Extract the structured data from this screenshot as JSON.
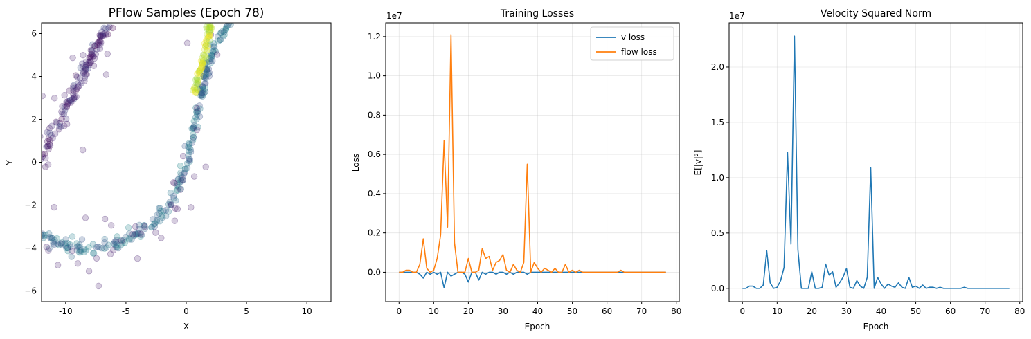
{
  "chart_data": [
    {
      "type": "scatter",
      "title": "PFlow Samples (Epoch 78)",
      "xlabel": "X",
      "ylabel": "Y",
      "xlim": [
        -12,
        12
      ],
      "ylim": [
        -6.5,
        6.5
      ],
      "xticks": [
        -10,
        -5,
        0,
        5,
        10
      ],
      "yticks": [
        -6,
        -4,
        -2,
        0,
        2,
        4,
        6
      ],
      "grid": false,
      "colormap": "viridis",
      "point_alpha": 0.25,
      "clusters": [
        {
          "name": "upper-left arm",
          "path": [
            [
              -12,
              0.2
            ],
            [
              -11,
              1.3
            ],
            [
              -10,
              2.5
            ],
            [
              -9,
              3.6
            ],
            [
              -8,
              4.8
            ],
            [
              -7,
              5.9
            ],
            [
              -6.2,
              6.5
            ]
          ],
          "count": 120,
          "spread": 0.18,
          "color_value": 0.12,
          "outliers": 30
        },
        {
          "name": "lower curve",
          "path": [
            [
              -12,
              -3.4
            ],
            [
              -10,
              -3.9
            ],
            [
              -8,
              -4.0
            ],
            [
              -6,
              -3.8
            ],
            [
              -4,
              -3.3
            ],
            [
              -2,
              -2.5
            ],
            [
              -1,
              -1.6
            ],
            [
              0,
              -0.2
            ],
            [
              0.5,
              1.2
            ],
            [
              1,
              2.8
            ],
            [
              1.5,
              4.0
            ],
            [
              2.2,
              5.2
            ],
            [
              3,
              6.0
            ],
            [
              3.6,
              6.5
            ]
          ],
          "count": 260,
          "spread": 0.15,
          "color_value": 0.35,
          "outliers": 40
        },
        {
          "name": "bright ridge",
          "path": [
            [
              0.6,
              3.0
            ],
            [
              0.9,
              3.6
            ],
            [
              1.2,
              4.3
            ],
            [
              1.5,
              5.0
            ],
            [
              1.8,
              5.8
            ],
            [
              2.0,
              6.5
            ]
          ],
          "count": 80,
          "spread": 0.1,
          "color_value": 0.95,
          "outliers": 0
        }
      ]
    },
    {
      "type": "line",
      "title": "Training Losses",
      "xlabel": "Epoch",
      "ylabel": "Loss",
      "offset_text": "1e7",
      "xlim": [
        -3.85,
        80.85
      ],
      "ylim": [
        -0.15,
        1.27
      ],
      "xticks": [
        0,
        10,
        20,
        30,
        40,
        50,
        60,
        70,
        80
      ],
      "yticks": [
        0.0,
        0.2,
        0.4,
        0.6,
        0.8,
        1.0,
        1.2
      ],
      "ytick_labels": [
        "0.0",
        "0.2",
        "0.4",
        "0.6",
        "0.8",
        "1.0",
        "1.2"
      ],
      "grid": true,
      "legend_position": "upper right",
      "x": [
        0,
        1,
        2,
        3,
        4,
        5,
        6,
        7,
        8,
        9,
        10,
        11,
        12,
        13,
        14,
        15,
        16,
        17,
        18,
        19,
        20,
        21,
        22,
        23,
        24,
        25,
        26,
        27,
        28,
        29,
        30,
        31,
        32,
        33,
        34,
        35,
        36,
        37,
        38,
        39,
        40,
        41,
        42,
        43,
        44,
        45,
        46,
        47,
        48,
        49,
        50,
        51,
        52,
        53,
        54,
        55,
        56,
        57,
        58,
        59,
        60,
        61,
        62,
        63,
        64,
        65,
        66,
        67,
        68,
        69,
        70,
        71,
        72,
        73,
        74,
        75,
        76,
        77
      ],
      "series": [
        {
          "name": "v loss",
          "color": "#1f77b4",
          "values": [
            0,
            0,
            0,
            0,
            0,
            0,
            -0.01,
            -0.03,
            0,
            -0.01,
            0,
            -0.01,
            0,
            -0.08,
            0,
            -0.02,
            -0.01,
            0,
            0,
            -0.01,
            -0.05,
            0,
            0,
            -0.04,
            0,
            -0.01,
            0,
            0,
            -0.01,
            0,
            0,
            -0.01,
            0,
            -0.01,
            0,
            0,
            0,
            -0.01,
            0,
            0,
            0,
            0,
            0,
            0,
            0,
            0,
            0,
            0,
            0,
            0,
            0,
            0,
            0,
            0,
            0,
            0,
            0,
            0,
            0,
            0,
            0,
            0,
            0,
            0,
            0,
            0,
            0,
            0,
            0,
            0,
            0,
            0,
            0,
            0,
            0,
            0,
            0,
            0
          ]
        },
        {
          "name": "flow loss",
          "color": "#ff7f0e",
          "values": [
            0,
            0,
            0.01,
            0.01,
            0,
            0,
            0.04,
            0.17,
            0.02,
            0,
            0.01,
            0.07,
            0.19,
            0.67,
            0.23,
            1.21,
            0.15,
            0,
            0,
            0,
            0.07,
            0,
            0,
            0.01,
            0.12,
            0.07,
            0.08,
            0.01,
            0.05,
            0.06,
            0.09,
            0.01,
            0,
            0.04,
            0.01,
            0,
            0.05,
            0.55,
            0,
            0.05,
            0.02,
            0,
            0.02,
            0.01,
            0,
            0.02,
            0,
            0,
            0.04,
            0,
            0.01,
            0,
            0.01,
            0,
            0,
            0,
            0,
            0,
            0,
            0,
            0,
            0,
            0,
            0,
            0.01,
            0,
            0,
            0,
            0,
            0,
            0,
            0,
            0,
            0,
            0,
            0,
            0,
            0
          ]
        }
      ]
    },
    {
      "type": "line",
      "title": "Velocity Squared Norm",
      "xlabel": "Epoch",
      "ylabel": "E[|v|²]",
      "offset_text": "1e7",
      "xlim": [
        -3.85,
        80.85
      ],
      "ylim": [
        -0.12,
        2.4
      ],
      "xticks": [
        0,
        10,
        20,
        30,
        40,
        50,
        60,
        70,
        80
      ],
      "yticks": [
        0.0,
        0.5,
        1.0,
        1.5,
        2.0
      ],
      "ytick_labels": [
        "0.0",
        "0.5",
        "1.0",
        "1.5",
        "2.0"
      ],
      "grid": true,
      "x": [
        0,
        1,
        2,
        3,
        4,
        5,
        6,
        7,
        8,
        9,
        10,
        11,
        12,
        13,
        14,
        15,
        16,
        17,
        18,
        19,
        20,
        21,
        22,
        23,
        24,
        25,
        26,
        27,
        28,
        29,
        30,
        31,
        32,
        33,
        34,
        35,
        36,
        37,
        38,
        39,
        40,
        41,
        42,
        43,
        44,
        45,
        46,
        47,
        48,
        49,
        50,
        51,
        52,
        53,
        54,
        55,
        56,
        57,
        58,
        59,
        60,
        61,
        62,
        63,
        64,
        65,
        66,
        67,
        68,
        69,
        70,
        71,
        72,
        73,
        74,
        75,
        76,
        77
      ],
      "series": [
        {
          "name": "",
          "color": "#1f77b4",
          "values": [
            0,
            0,
            0.02,
            0.02,
            0,
            0,
            0.03,
            0.34,
            0.05,
            0,
            0.01,
            0.07,
            0.19,
            1.23,
            0.4,
            2.28,
            0.35,
            0,
            0,
            0,
            0.15,
            0,
            0,
            0.01,
            0.22,
            0.12,
            0.15,
            0.01,
            0.05,
            0.1,
            0.18,
            0.01,
            0,
            0.07,
            0.02,
            0,
            0.1,
            1.09,
            0,
            0.1,
            0.04,
            0,
            0.04,
            0.02,
            0.01,
            0.05,
            0.01,
            0,
            0.1,
            0.01,
            0.02,
            0,
            0.03,
            0,
            0.01,
            0.01,
            0,
            0.01,
            0,
            0,
            0,
            0,
            0,
            0,
            0.01,
            0,
            0,
            0,
            0,
            0,
            0,
            0,
            0,
            0,
            0,
            0,
            0,
            0
          ]
        }
      ]
    }
  ]
}
